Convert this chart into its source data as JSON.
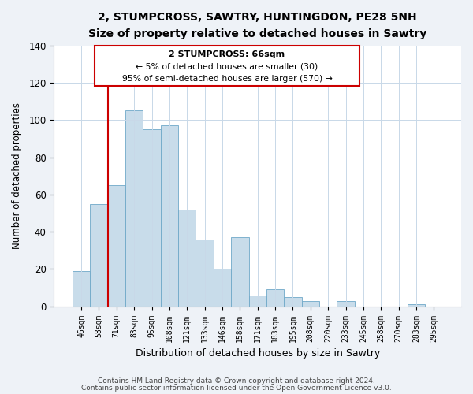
{
  "title": "2, STUMPCROSS, SAWTRY, HUNTINGDON, PE28 5NH",
  "subtitle": "Size of property relative to detached houses in Sawtry",
  "xlabel": "Distribution of detached houses by size in Sawtry",
  "ylabel": "Number of detached properties",
  "categories": [
    "46sqm",
    "58sqm",
    "71sqm",
    "83sqm",
    "96sqm",
    "108sqm",
    "121sqm",
    "133sqm",
    "146sqm",
    "158sqm",
    "171sqm",
    "183sqm",
    "195sqm",
    "208sqm",
    "220sqm",
    "233sqm",
    "245sqm",
    "258sqm",
    "270sqm",
    "283sqm",
    "295sqm"
  ],
  "values": [
    19,
    55,
    65,
    105,
    95,
    97,
    52,
    36,
    20,
    37,
    6,
    9,
    5,
    3,
    0,
    3,
    0,
    0,
    0,
    1,
    0
  ],
  "bar_color": "#c8dcea",
  "bar_edge_color": "#6fa8c8",
  "vline_color": "#cc0000",
  "ylim": [
    0,
    140
  ],
  "annotation_line1": "2 STUMPCROSS: 66sqm",
  "annotation_line2": "← 5% of detached houses are smaller (30)",
  "annotation_line3": "95% of semi-detached houses are larger (570) →",
  "footer1": "Contains HM Land Registry data © Crown copyright and database right 2024.",
  "footer2": "Contains public sector information licensed under the Open Government Licence v3.0.",
  "background_color": "#eef2f7",
  "plot_background": "#ffffff"
}
